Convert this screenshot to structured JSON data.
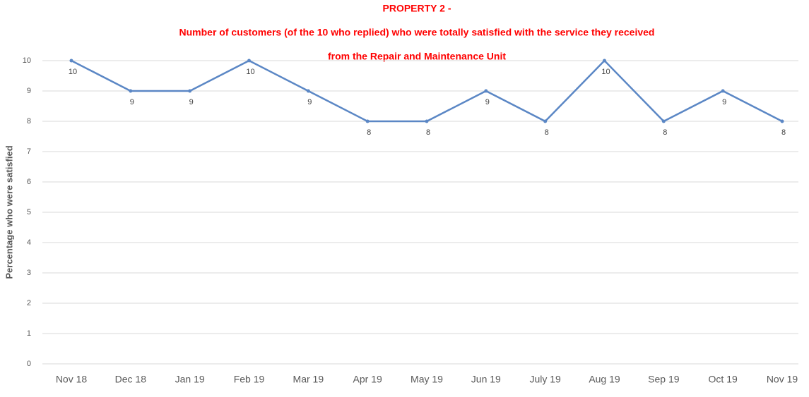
{
  "chart_data": {
    "type": "line",
    "title": [
      "PROPERTY 2 -",
      "Number of customers (of the 10 who replied) who were totally satisfied with the service they received",
      "from the Repair and Maintenance Unit"
    ],
    "y_label": "Percentage  who were satisfied",
    "categories": [
      "Nov 18",
      "Dec 18",
      "Jan 19",
      "Feb 19",
      "Mar 19",
      "Apr 19",
      "May 19",
      "Jun 19",
      "July 19",
      "Aug 19",
      "Sep 19",
      "Oct 19",
      "Nov 19"
    ],
    "values": [
      10,
      9,
      9,
      10,
      9,
      8,
      8,
      9,
      8,
      10,
      8,
      9,
      8
    ],
    "color": "#5b87c5",
    "ylim": [
      0,
      10
    ],
    "yticks": [
      0,
      1,
      2,
      3,
      4,
      5,
      6,
      7,
      8,
      9,
      10
    ],
    "grid": true
  }
}
